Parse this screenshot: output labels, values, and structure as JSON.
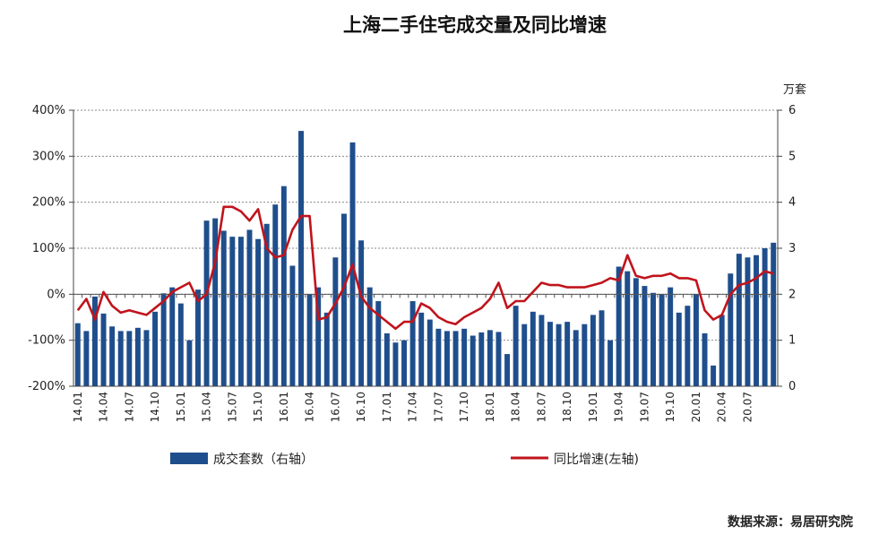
{
  "chart_data": {
    "type": "bar+line",
    "title": "上海二手住宅成交量及同比增速",
    "y_left": {
      "ticks": [
        "400%",
        "300%",
        "200%",
        "100%",
        "0%",
        "-100%",
        "-200%"
      ],
      "range": [
        -200,
        400
      ]
    },
    "y_right": {
      "unit": "万套",
      "ticks": [
        "6",
        "5",
        "4",
        "3",
        "2",
        "1",
        "0"
      ],
      "range": [
        0,
        6
      ]
    },
    "x_ticks": [
      "14.01",
      "14.04",
      "14.07",
      "14.10",
      "15.01",
      "15.04",
      "15.07",
      "15.10",
      "16.01",
      "16.04",
      "16.07",
      "16.10",
      "17.01",
      "17.04",
      "17.07",
      "17.10",
      "18.01",
      "18.04",
      "18.07",
      "18.10",
      "19.01",
      "19.04",
      "19.07",
      "19.10",
      "20.01",
      "20.04",
      "20.07"
    ],
    "series": [
      {
        "name": "成交套数（右轴）",
        "kind": "bar",
        "axis": "right",
        "color": "#1f4e8c",
        "values": [
          1.37,
          1.2,
          1.95,
          1.58,
          1.3,
          1.2,
          1.2,
          1.27,
          1.22,
          1.62,
          2.02,
          2.15,
          1.8,
          1.0,
          2.1,
          3.6,
          3.65,
          3.38,
          3.25,
          3.25,
          3.4,
          3.2,
          3.53,
          3.95,
          4.35,
          2.62,
          5.55,
          2.0,
          2.15,
          1.6,
          2.8,
          3.75,
          5.3,
          3.17,
          2.15,
          1.85,
          1.15,
          0.95,
          1.0,
          1.85,
          1.6,
          1.45,
          1.25,
          1.2,
          1.2,
          1.25,
          1.1,
          1.17,
          1.22,
          1.18,
          0.7,
          1.75,
          1.35,
          1.62,
          1.55,
          1.4,
          1.35,
          1.4,
          1.22,
          1.35,
          1.55,
          1.65,
          1.0,
          2.6,
          2.5,
          2.35,
          2.18,
          2.03,
          2.0,
          2.15,
          1.6,
          1.75,
          2.0,
          1.15,
          0.45,
          1.55,
          2.45,
          2.88,
          2.8,
          2.85,
          3.0,
          3.12
        ]
      },
      {
        "name": "同比增速(左轴)",
        "kind": "line",
        "axis": "left",
        "color": "#c0141c",
        "values": [
          -35,
          -10,
          -55,
          5,
          -25,
          -40,
          -35,
          -40,
          -45,
          -30,
          -15,
          5,
          15,
          25,
          -15,
          0,
          70,
          190,
          190,
          180,
          160,
          185,
          100,
          80,
          85,
          140,
          170,
          170,
          -55,
          -50,
          -20,
          15,
          65,
          -5,
          -30,
          -45,
          -60,
          -75,
          -60,
          -60,
          -20,
          -30,
          -50,
          -60,
          -65,
          -50,
          -40,
          -30,
          -10,
          25,
          -30,
          -15,
          -15,
          5,
          25,
          20,
          20,
          15,
          15,
          15,
          20,
          25,
          35,
          30,
          85,
          40,
          35,
          40,
          40,
          45,
          35,
          35,
          30,
          -35,
          -55,
          -45,
          0,
          20,
          25,
          35,
          50,
          45
        ]
      }
    ],
    "legend": [
      "成交套数（右轴）",
      "同比增速(左轴)"
    ],
    "legend_position": "bottom",
    "grid": true,
    "source": "数据来源：易居研究院"
  }
}
